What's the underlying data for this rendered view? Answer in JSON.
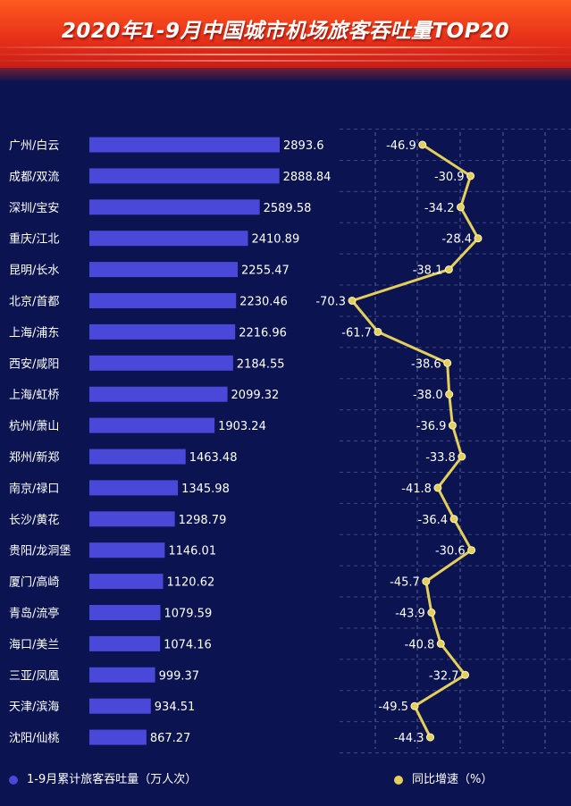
{
  "header": {
    "title": "2020年1-9月中国城市机场旅客吞吐量TOP20"
  },
  "chart_data": {
    "type": "bar",
    "categories": [
      "广州/白云",
      "成都/双流",
      "深圳/宝安",
      "重庆/江北",
      "昆明/长水",
      "北京/首都",
      "上海/浦东",
      "西安/咸阳",
      "上海/虹桥",
      "杭州/萧山",
      "郑州/新郑",
      "南京/禄口",
      "长沙/黄花",
      "贵阳/龙洞堡",
      "厦门/高崎",
      "青岛/流亭",
      "海口/美兰",
      "三亚/凤凰",
      "天津/滨海",
      "沈阳/仙桃"
    ],
    "series": [
      {
        "name": "1-9月累计旅客吞吐量（万人次）",
        "type": "bar",
        "color": "#4a48d8",
        "values": [
          2893.6,
          2888.84,
          2589.58,
          2410.89,
          2255.47,
          2230.46,
          2216.96,
          2184.55,
          2099.32,
          1903.24,
          1463.48,
          1345.98,
          1298.79,
          1146.01,
          1120.62,
          1079.59,
          1074.16,
          999.37,
          934.51,
          867.27
        ],
        "labels": [
          "2893.6",
          "2888.84",
          "2589.58",
          "2410.89",
          "2255.47",
          "2230.46",
          "2216.96",
          "2184.55",
          "2099.32",
          "1903.24",
          "1463.48",
          "1345.98",
          "1298.79",
          "1146.01",
          "1120.62",
          "1079.59",
          "1074.16",
          "999.37",
          "934.51",
          "867.27"
        ]
      },
      {
        "name": "同比增速（%）",
        "type": "line",
        "color": "#e3cf5a",
        "values": [
          -46.9,
          -30.9,
          -34.2,
          -28.4,
          -38.1,
          -70.3,
          -61.7,
          -38.6,
          -38.0,
          -36.9,
          -33.8,
          -41.8,
          -36.4,
          -30.6,
          -45.7,
          -43.9,
          -40.8,
          -32.7,
          -49.5,
          -44.3
        ],
        "labels": [
          "-46.9",
          "-30.9",
          "-34.2",
          "-28.4",
          "-38.1",
          "-70.3",
          "-61.7",
          "-38.6",
          "-38.0",
          "-36.9",
          "-33.8",
          "-41.8",
          "-36.4",
          "-30.6",
          "-45.7",
          "-43.9",
          "-40.8",
          "-32.7",
          "-49.5",
          "-44.3"
        ]
      }
    ],
    "orientation": "horizontal",
    "legend_position": "bottom"
  }
}
